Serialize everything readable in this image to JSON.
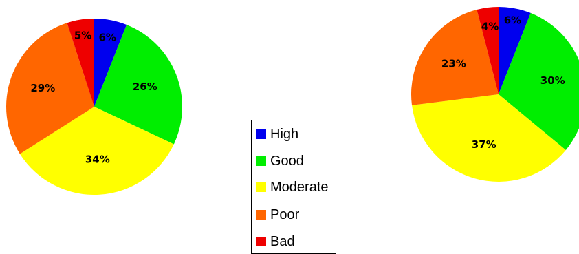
{
  "chart_data": [
    {
      "type": "pie",
      "categories": [
        "High",
        "Good",
        "Moderate",
        "Poor",
        "Bad"
      ],
      "values": [
        6,
        26,
        34,
        29,
        5
      ],
      "labels": [
        "6%",
        "26%",
        "34%",
        "29%",
        "5%"
      ],
      "colors": [
        "#0000ee",
        "#00ee00",
        "#ffff00",
        "#ff6600",
        "#ee0000"
      ]
    },
    {
      "type": "pie",
      "categories": [
        "High",
        "Good",
        "Moderate",
        "Poor",
        "Bad"
      ],
      "values": [
        6,
        30,
        37,
        23,
        4
      ],
      "labels": [
        "6%",
        "30%",
        "37%",
        "23%",
        "4%"
      ],
      "colors": [
        "#0000ee",
        "#00ee00",
        "#ffff00",
        "#ff6600",
        "#ee0000"
      ]
    }
  ],
  "legend": {
    "items": [
      {
        "label": "High",
        "color": "#0000ee"
      },
      {
        "label": "Good",
        "color": "#00ee00"
      },
      {
        "label": "Moderate",
        "color": "#ffff00"
      },
      {
        "label": "Poor",
        "color": "#ff6600"
      },
      {
        "label": "Bad",
        "color": "#ee0000"
      }
    ]
  }
}
